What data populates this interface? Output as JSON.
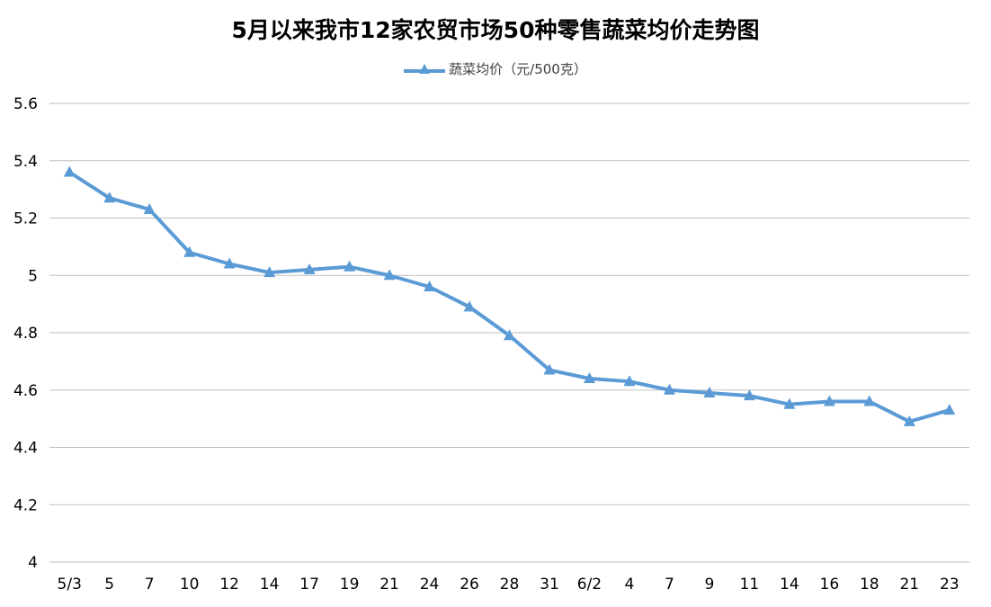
{
  "chart_data": {
    "type": "line",
    "title": "5月以来我市12家农贸市场50种零售蔬菜均价走势图",
    "categories": [
      "5/3",
      "5",
      "7",
      "10",
      "12",
      "14",
      "17",
      "19",
      "21",
      "24",
      "26",
      "28",
      "31",
      "6/2",
      "4",
      "7",
      "9",
      "11",
      "14",
      "16",
      "18",
      "21",
      "23"
    ],
    "series": [
      {
        "name": "蔬菜均价（元/500克）",
        "color": "#5B9BD5",
        "marker": "triangle",
        "values": [
          5.36,
          5.27,
          5.23,
          5.08,
          5.04,
          5.01,
          5.02,
          5.03,
          5.0,
          4.96,
          4.89,
          4.79,
          4.67,
          4.64,
          4.63,
          4.6,
          4.59,
          4.58,
          4.55,
          4.56,
          4.56,
          4.49,
          4.53
        ]
      }
    ],
    "ylim": [
      4,
      5.6
    ],
    "yticks": [
      "4",
      "4.2",
      "4.4",
      "4.6",
      "4.8",
      "5",
      "5.2",
      "5.4",
      "5.6"
    ],
    "ytick_values": [
      4,
      4.2,
      4.4,
      4.6,
      4.8,
      5,
      5.2,
      5.4,
      5.6
    ],
    "grid": true,
    "legend_position": "top-center",
    "xlabel": "",
    "ylabel": ""
  }
}
